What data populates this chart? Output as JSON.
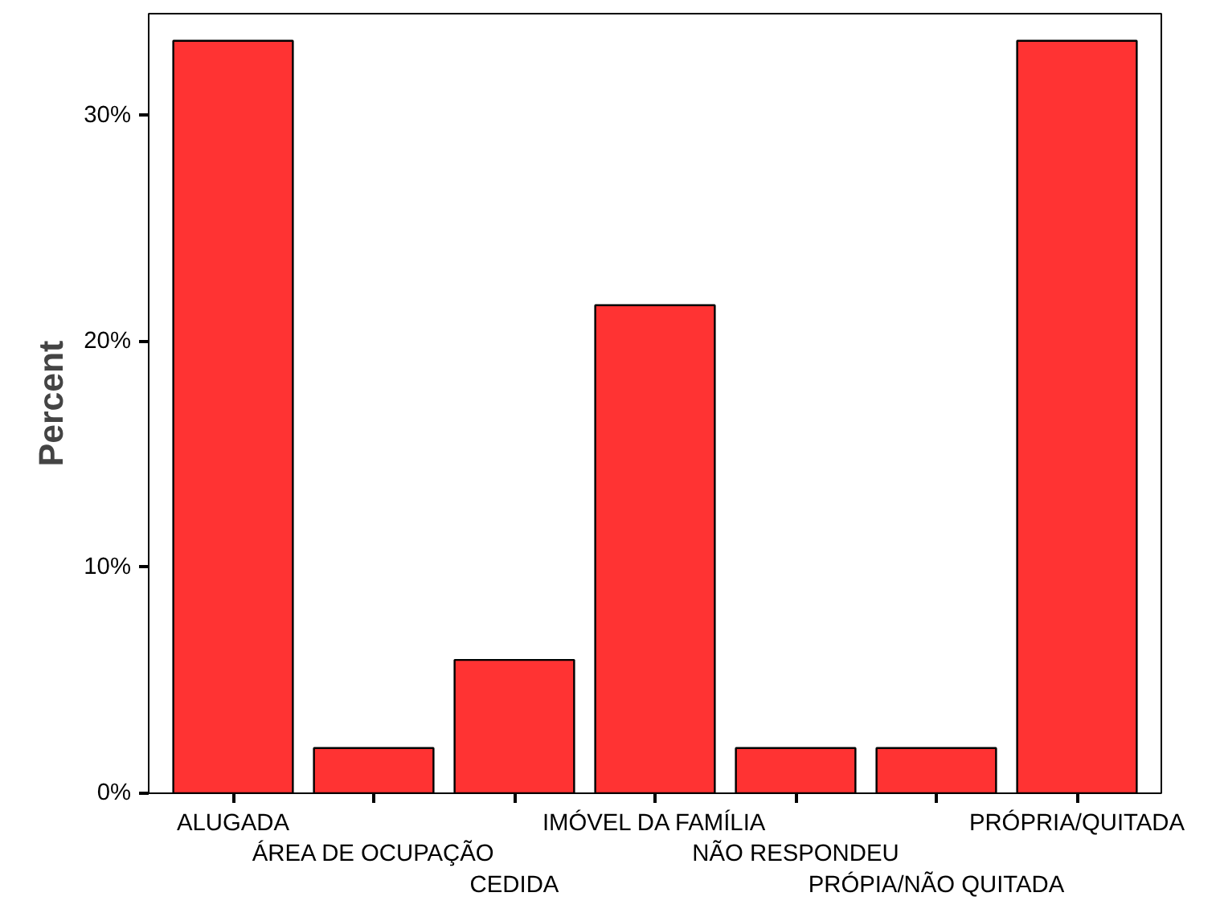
{
  "chart_data": {
    "type": "bar",
    "ylabel": "Percent",
    "categories": [
      "ALUGADA",
      "ÁREA DE OCUPAÇÃO",
      "CEDIDA",
      "IMÓVEL DA FAMÍLIA",
      "NÃO RESPONDEU",
      "PRÓPIA/NÃO QUITADA",
      "PRÓPRIA/QUITADA"
    ],
    "values": [
      33.3,
      2.0,
      5.9,
      21.6,
      2.0,
      2.0,
      33.3
    ],
    "color": "#ff3333",
    "ylim": [
      0,
      34.5
    ],
    "yticks": [
      {
        "value": 0,
        "label": "0%"
      },
      {
        "value": 10,
        "label": "10%"
      },
      {
        "value": 20,
        "label": "20%"
      },
      {
        "value": 30,
        "label": "30%"
      }
    ],
    "grid": false
  }
}
